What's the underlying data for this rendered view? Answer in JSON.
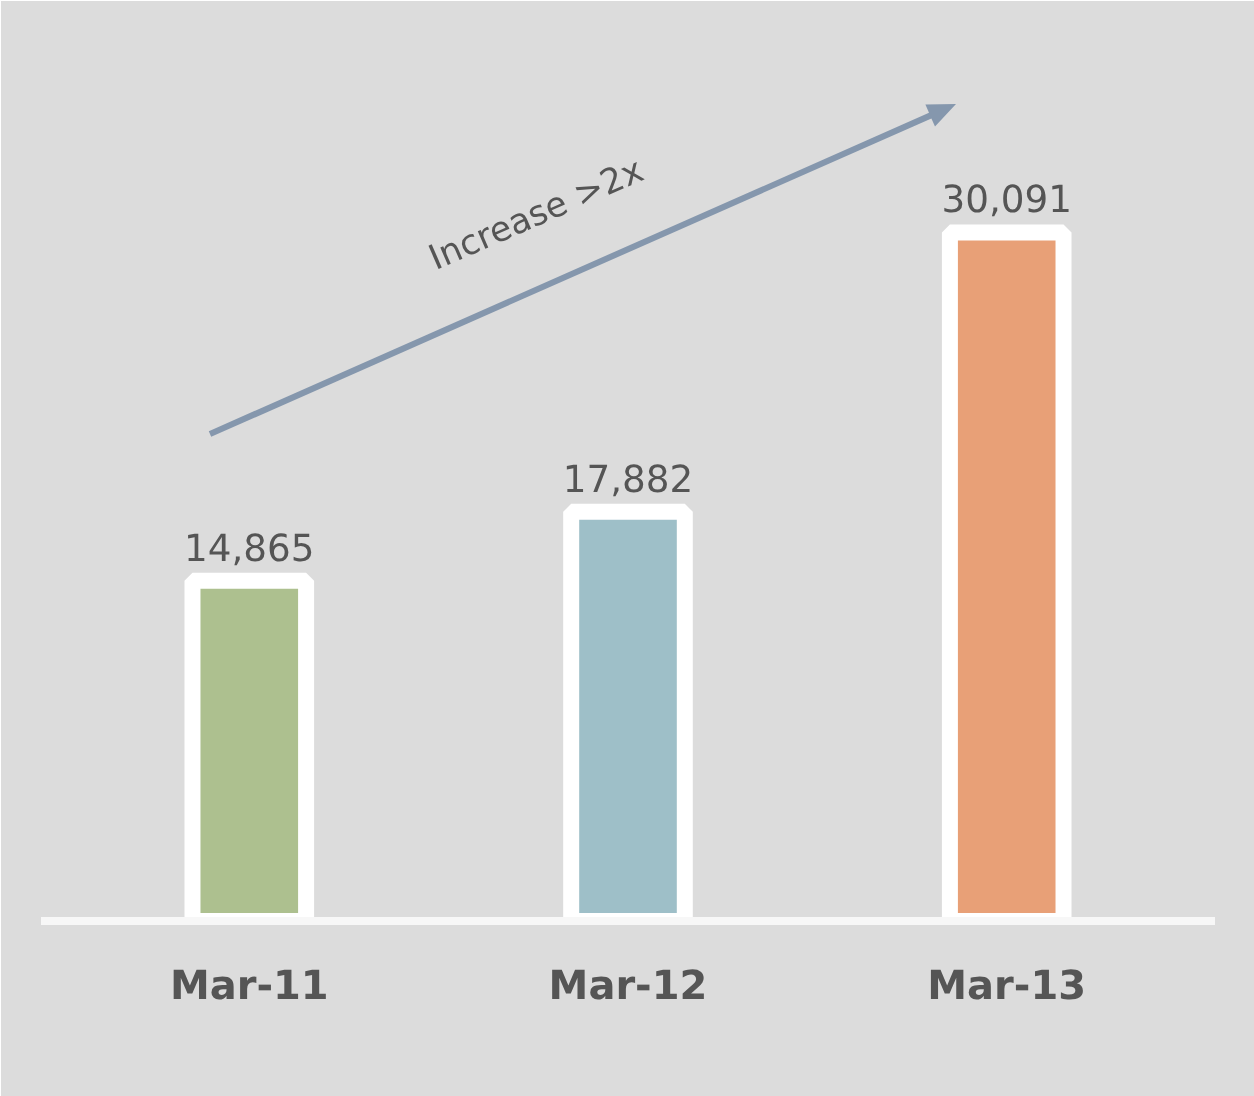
{
  "chart_data": {
    "type": "bar",
    "categories": [
      "Mar-11",
      "Mar-12",
      "Mar-13"
    ],
    "values": [
      14865,
      17882,
      30091
    ],
    "colors": [
      "#adc08f",
      "#9ebfc8",
      "#e8a077"
    ],
    "value_labels": [
      "14,865",
      "17,882",
      "30,091"
    ],
    "annotations": [
      "Increase >2x"
    ],
    "grid": false
  }
}
